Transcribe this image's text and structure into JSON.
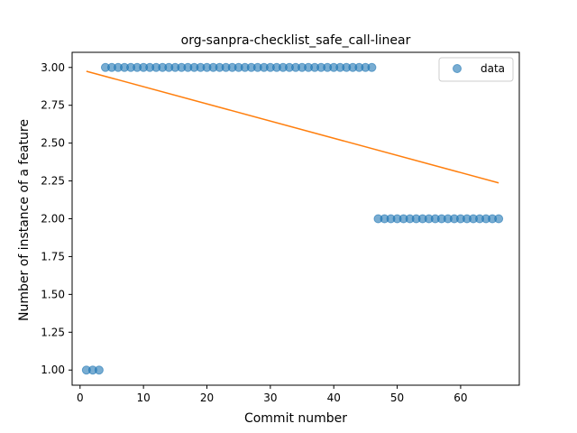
{
  "chart_data": {
    "type": "scatter",
    "title": "org-sanpra-checklist_safe_call-linear",
    "xlabel": "Commit number",
    "ylabel": "Number of instance of a feature",
    "xlim": [
      -1.25,
      69.25
    ],
    "ylim": [
      0.9,
      3.1
    ],
    "x_ticks": [
      0,
      10,
      20,
      30,
      40,
      50,
      60
    ],
    "x_tick_labels": [
      "0",
      "10",
      "20",
      "30",
      "40",
      "50",
      "60"
    ],
    "y_ticks": [
      1.0,
      1.25,
      1.5,
      1.75,
      2.0,
      2.25,
      2.5,
      2.75,
      3.0
    ],
    "y_tick_labels": [
      "1.00",
      "1.25",
      "1.50",
      "1.75",
      "2.00",
      "2.25",
      "2.50",
      "2.75",
      "3.00"
    ],
    "grid": false,
    "legend_position": "top-right",
    "series": [
      {
        "name": "data",
        "kind": "scatter",
        "color": "#1f77b4",
        "x": [
          1,
          2,
          3,
          4,
          5,
          6,
          7,
          8,
          9,
          10,
          11,
          12,
          13,
          14,
          15,
          16,
          17,
          18,
          19,
          20,
          21,
          22,
          23,
          24,
          25,
          26,
          27,
          28,
          29,
          30,
          31,
          32,
          33,
          34,
          35,
          36,
          37,
          38,
          39,
          40,
          41,
          42,
          43,
          44,
          45,
          46,
          47,
          48,
          49,
          50,
          51,
          52,
          53,
          54,
          55,
          56,
          57,
          58,
          59,
          60,
          61,
          62,
          63,
          64,
          65,
          66
        ],
        "y": [
          1,
          1,
          1,
          3,
          3,
          3,
          3,
          3,
          3,
          3,
          3,
          3,
          3,
          3,
          3,
          3,
          3,
          3,
          3,
          3,
          3,
          3,
          3,
          3,
          3,
          3,
          3,
          3,
          3,
          3,
          3,
          3,
          3,
          3,
          3,
          3,
          3,
          3,
          3,
          3,
          3,
          3,
          3,
          3,
          3,
          3,
          2,
          2,
          2,
          2,
          2,
          2,
          2,
          2,
          2,
          2,
          2,
          2,
          2,
          2,
          2,
          2,
          2,
          2,
          2,
          2
        ]
      },
      {
        "kind": "line",
        "color": "#ff7f0e",
        "x": [
          1,
          66
        ],
        "y": [
          2.975,
          2.237
        ]
      }
    ]
  }
}
